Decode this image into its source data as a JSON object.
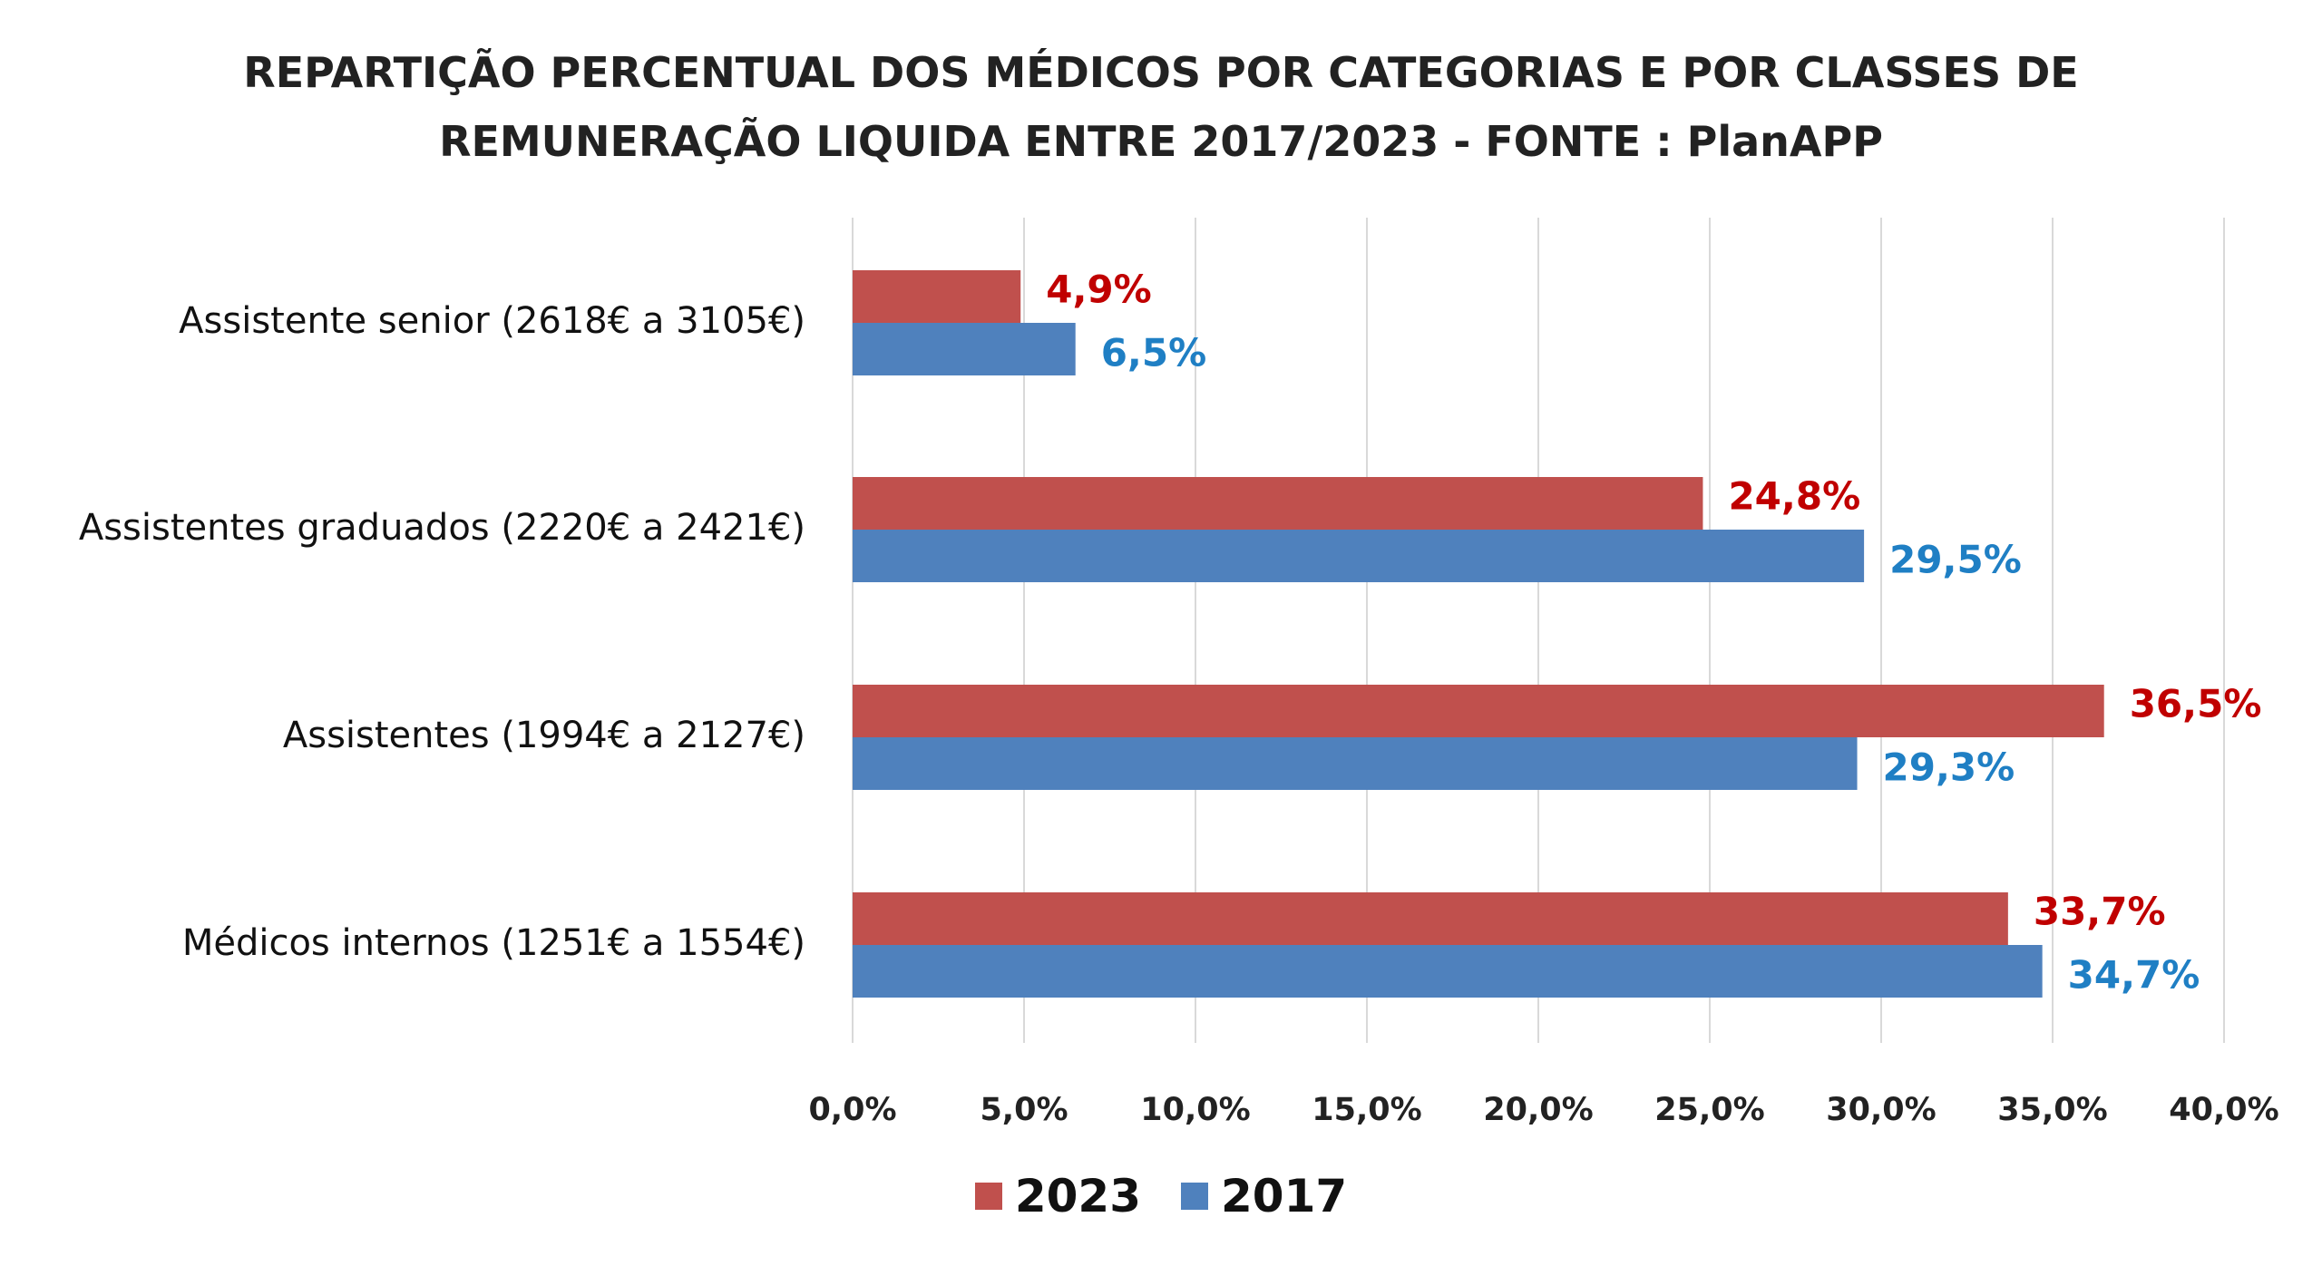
{
  "chart_data": {
    "type": "bar",
    "orientation": "horizontal",
    "title_lines": [
      "REPARTIÇÃO PERCENTUAL DOS MÉDICOS POR CATEGORIAS E POR CLASSES DE",
      "REMUNERAÇÃO LIQUIDA ENTRE 2017/2023 - FONTE : PlanAPP"
    ],
    "categories": [
      "Assistente senior (2618€ a 3105€)",
      "Assistentes graduados (2220€ a 2421€)",
      "Assistentes (1994€ a 2127€)",
      "Médicos internos (1251€ a 1554€)"
    ],
    "series": [
      {
        "name": "2023",
        "color": "#c0504d",
        "label_color": "#c00000",
        "values": [
          4.9,
          24.8,
          36.5,
          33.7
        ],
        "labels": [
          "4,9%",
          "24,8%",
          "36,5%",
          "33,7%"
        ]
      },
      {
        "name": "2017",
        "color": "#4f81bd",
        "label_color": "#1f7fc4",
        "values": [
          6.5,
          29.5,
          29.3,
          34.7
        ],
        "labels": [
          "6,5%",
          "29,5%",
          "29,3%",
          "34,7%"
        ]
      }
    ],
    "x_ticks": [
      "0,0%",
      "5,0%",
      "10,0%",
      "15,0%",
      "20,0%",
      "25,0%",
      "30,0%",
      "35,0%",
      "40,0%"
    ],
    "xlim": [
      0,
      40
    ],
    "grid": true,
    "legend_position": "bottom"
  }
}
